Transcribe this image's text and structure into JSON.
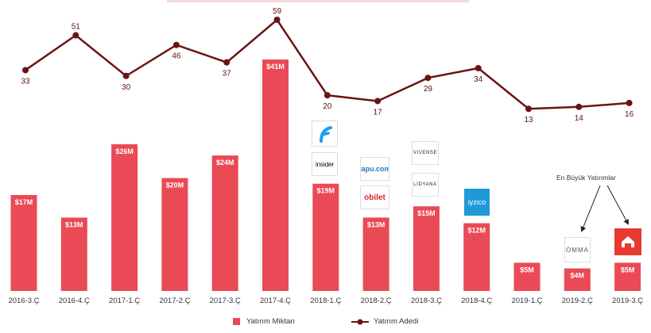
{
  "chart_data": {
    "type": "bar",
    "categories": [
      "2016-3.Ç",
      "2016-4.Ç",
      "2017-1.Ç",
      "2017-2.Ç",
      "2017-3.Ç",
      "2017-4.Ç",
      "2018-1.Ç",
      "2018-2.Ç",
      "2018-3.Ç",
      "2018-4.Ç",
      "2019-1.Ç",
      "2019-2.Ç",
      "2019-3.Ç"
    ],
    "series": [
      {
        "name": "Yatırım Miktarı",
        "type": "bar",
        "values": [
          17,
          13,
          26,
          20,
          24,
          41,
          19,
          13,
          15,
          12,
          5,
          4,
          5
        ],
        "labels": [
          "$17M",
          "$13M",
          "$26M",
          "$20M",
          "$24M",
          "$41M",
          "$19M",
          "$13M",
          "$15M",
          "$12M",
          "$5M",
          "$4M",
          "$5M"
        ],
        "color": "#e94a55"
      },
      {
        "name": "Yatırım Adedi",
        "type": "line",
        "values": [
          33,
          51,
          30,
          46,
          37,
          59,
          20,
          17,
          29,
          34,
          13,
          14,
          16
        ],
        "color": "#6b1414"
      }
    ],
    "annotation": "En Büyük Yatırımlar",
    "legend_position": "bottom"
  },
  "logos": [
    {
      "id": "f-logo",
      "text": "F",
      "icon": "blue-swoosh-f-logo"
    },
    {
      "id": "insider",
      "text": "insider"
    },
    {
      "id": "tapu",
      "text": "tapu.com"
    },
    {
      "id": "obilet",
      "text": "obilet"
    },
    {
      "id": "vivense",
      "text": "VIVENSE"
    },
    {
      "id": "lidyana",
      "text": "LİDYANA"
    },
    {
      "id": "iyzico",
      "text": "iyzico"
    },
    {
      "id": "omma",
      "text": "OMMA"
    },
    {
      "id": "house",
      "text": "",
      "icon": "house-icon"
    }
  ],
  "legend": {
    "bar_label": "Yatırım Miktarı",
    "line_label": "Yatırım Adedi"
  },
  "colors": {
    "bar": "#e94a55",
    "line": "#6b1414"
  }
}
